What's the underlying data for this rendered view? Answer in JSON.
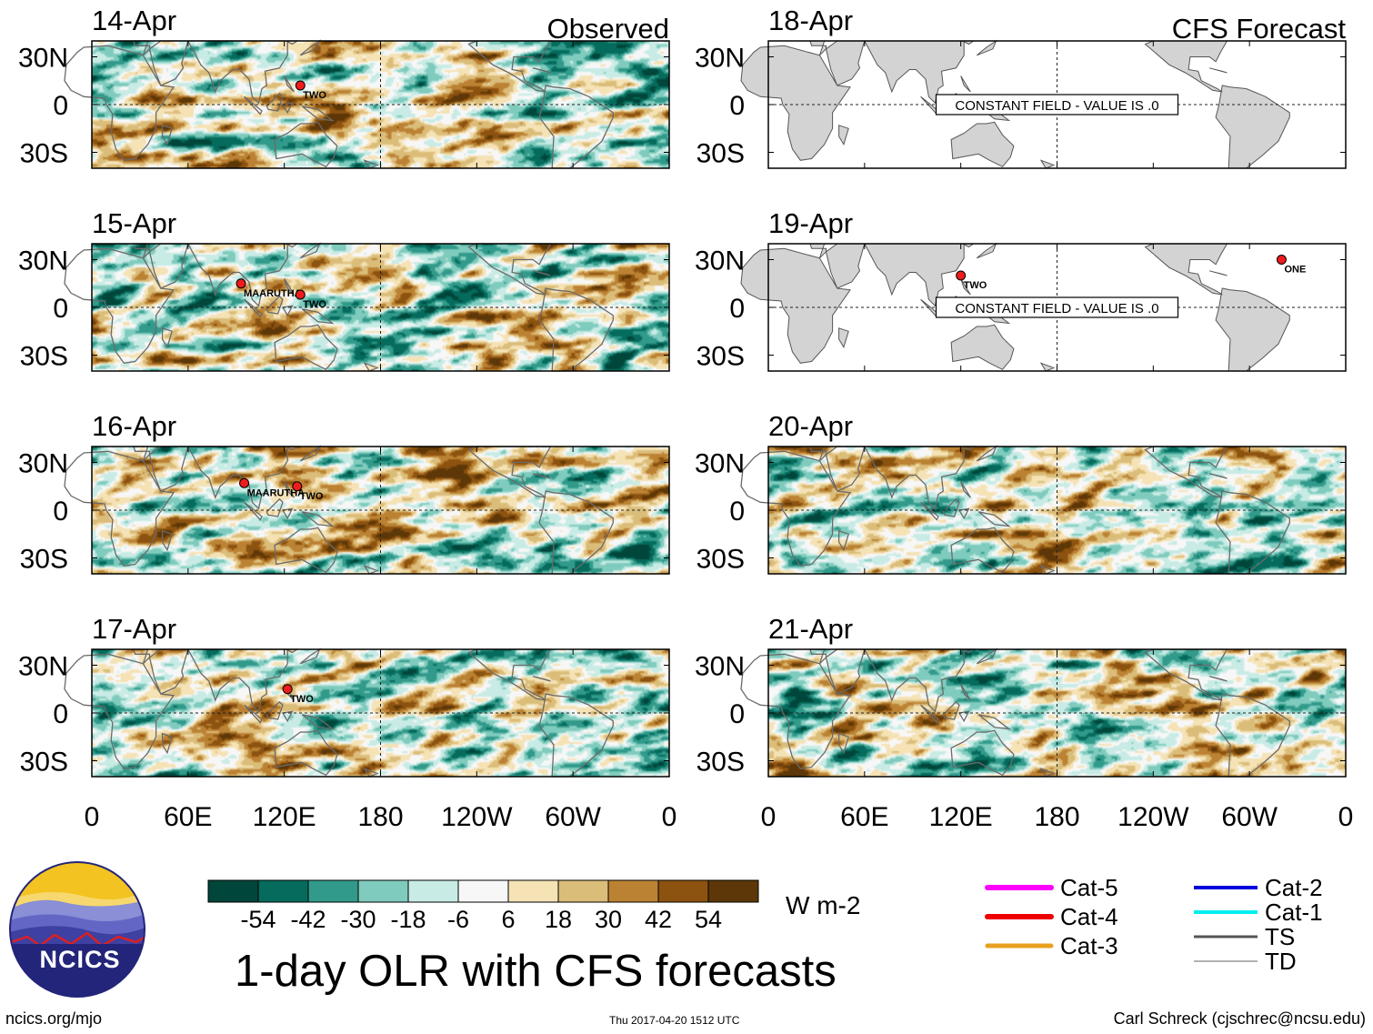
{
  "chart_data": {
    "type": "heatmap",
    "title": "1-day OLR with CFS forecasts",
    "variable": "OLR anomaly",
    "units": "W m-2",
    "column_headers": [
      "Observed",
      "CFS Forecast"
    ],
    "x_ticks": [
      "0",
      "60E",
      "120E",
      "180",
      "120W",
      "60W",
      "0"
    ],
    "y_ticks": [
      "30N",
      "0",
      "30S"
    ],
    "xlim_deg": [
      0,
      360
    ],
    "ylim_deg": [
      -40,
      40
    ],
    "colorbar": {
      "levels": [
        "-54",
        "-42",
        "-30",
        "-18",
        "-6",
        "6",
        "18",
        "30",
        "42",
        "54"
      ],
      "colors": [
        "#01463a",
        "#056b5c",
        "#329a8b",
        "#7fcbbd",
        "#c8ebe5",
        "#f7f7f7",
        "#f5e2b5",
        "#dbbd7a",
        "#bc8233",
        "#8c520f",
        "#5d3707"
      ]
    },
    "panels": [
      {
        "date": "14-Apr",
        "source": "observed",
        "label": "Observed",
        "storms": [
          {
            "name": "TWO",
            "lon": 130,
            "lat": 12
          }
        ]
      },
      {
        "date": "15-Apr",
        "source": "observed",
        "storms": [
          {
            "name": "MAARUTHA",
            "lon": 93,
            "lat": 15
          },
          {
            "name": "TWO",
            "lon": 130,
            "lat": 8
          }
        ]
      },
      {
        "date": "16-Apr",
        "source": "observed",
        "storms": [
          {
            "name": "MAARUTHA",
            "lon": 95,
            "lat": 17
          },
          {
            "name": "TWO",
            "lon": 128,
            "lat": 15
          }
        ]
      },
      {
        "date": "17-Apr",
        "source": "observed",
        "storms": [
          {
            "name": "TWO",
            "lon": 122,
            "lat": 15
          }
        ]
      },
      {
        "date": "18-Apr",
        "source": "forecast",
        "label": "CFS Forecast",
        "constant_field": "CONSTANT FIELD - VALUE IS .0",
        "storms": []
      },
      {
        "date": "19-Apr",
        "source": "forecast",
        "constant_field": "CONSTANT FIELD - VALUE IS .0",
        "storms": [
          {
            "name": "TWO",
            "lon": 120,
            "lat": 20
          },
          {
            "name": "ONE",
            "lon": 320,
            "lat": 30
          }
        ]
      },
      {
        "date": "20-Apr",
        "source": "forecast",
        "storms": []
      },
      {
        "date": "21-Apr",
        "source": "forecast",
        "storms": []
      }
    ],
    "storm_legend_left": [
      {
        "label": "Cat-5",
        "color": "#ff00ff",
        "width": 6
      },
      {
        "label": "Cat-4",
        "color": "#ee0000",
        "width": 6
      },
      {
        "label": "Cat-3",
        "color": "#e8a020",
        "width": 5
      }
    ],
    "storm_legend_right": [
      {
        "label": "Cat-2",
        "color": "#0000dd",
        "width": 4
      },
      {
        "label": "Cat-1",
        "color": "#00eeee",
        "width": 4
      },
      {
        "label": "TS",
        "color": "#555555",
        "width": 3
      },
      {
        "label": "TD",
        "color": "#999999",
        "width": 1.5
      }
    ]
  },
  "logo": {
    "text": "NCICS"
  },
  "footer": {
    "url": "ncics.org/mjo",
    "timestamp": "Thu 2017-04-20 1512 UTC",
    "credit": "Carl Schreck (cjschrec@ncsu.edu)"
  }
}
